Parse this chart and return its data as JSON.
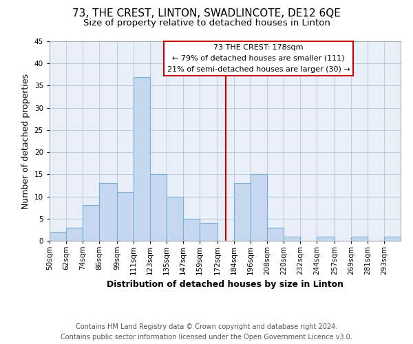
{
  "title": "73, THE CREST, LINTON, SWADLINCOTE, DE12 6QE",
  "subtitle": "Size of property relative to detached houses in Linton",
  "xlabel": "Distribution of detached houses by size in Linton",
  "ylabel": "Number of detached properties",
  "bin_labels": [
    "50sqm",
    "62sqm",
    "74sqm",
    "86sqm",
    "99sqm",
    "111sqm",
    "123sqm",
    "135sqm",
    "147sqm",
    "159sqm",
    "172sqm",
    "184sqm",
    "196sqm",
    "208sqm",
    "220sqm",
    "232sqm",
    "244sqm",
    "257sqm",
    "269sqm",
    "281sqm",
    "293sqm"
  ],
  "bin_edges": [
    50,
    62,
    74,
    86,
    99,
    111,
    123,
    135,
    147,
    159,
    172,
    184,
    196,
    208,
    220,
    232,
    244,
    257,
    269,
    281,
    293,
    305
  ],
  "bar_heights": [
    2,
    3,
    8,
    13,
    11,
    37,
    15,
    10,
    5,
    4,
    0,
    13,
    15,
    3,
    1,
    0,
    1,
    0,
    1,
    0,
    1
  ],
  "bar_color": "#c5d8f0",
  "bar_edge_color": "#7aadd4",
  "marker_value": 178,
  "marker_color": "#cc0000",
  "annotation_title": "73 THE CREST: 178sqm",
  "annotation_line1": "← 79% of detached houses are smaller (111)",
  "annotation_line2": "21% of semi-detached houses are larger (30) →",
  "annotation_box_color": "#ffffff",
  "annotation_box_edge": "#cc0000",
  "ylim": [
    0,
    45
  ],
  "yticks": [
    0,
    5,
    10,
    15,
    20,
    25,
    30,
    35,
    40,
    45
  ],
  "footer_line1": "Contains HM Land Registry data © Crown copyright and database right 2024.",
  "footer_line2": "Contains public sector information licensed under the Open Government Licence v3.0.",
  "background_color": "#ffffff",
  "plot_bg_color": "#e8eff8",
  "grid_color": "#c0ccd8",
  "title_fontsize": 11,
  "subtitle_fontsize": 9.5,
  "axis_label_fontsize": 9,
  "tick_fontsize": 7.5,
  "footer_fontsize": 7
}
